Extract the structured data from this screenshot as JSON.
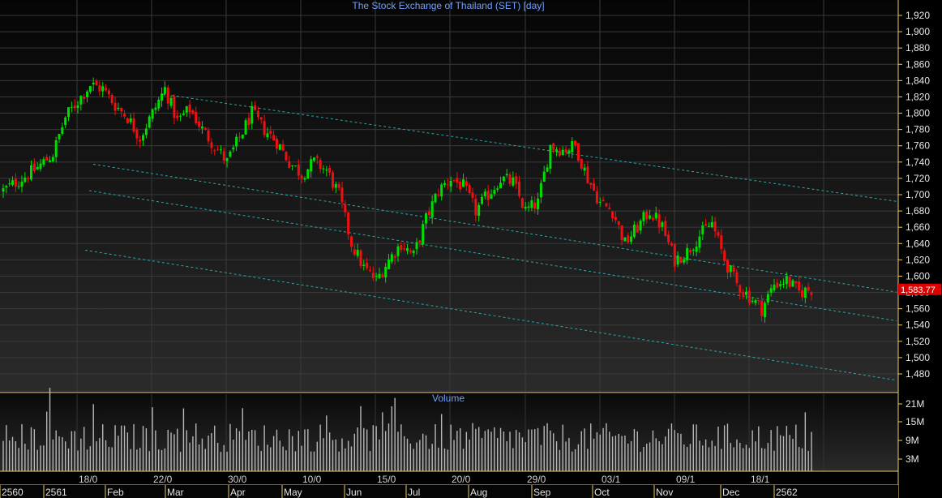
{
  "chart_data": {
    "type": "candlestick",
    "title": "The Stock Exchange of Thailand (SET) [day]",
    "volume_title": "Volume",
    "price_ticks": [
      1920,
      1900,
      1880,
      1860,
      1840,
      1820,
      1800,
      1780,
      1760,
      1740,
      1720,
      1700,
      1680,
      1660,
      1640,
      1620,
      1600,
      1580,
      1560,
      1540,
      1520,
      1500,
      1480
    ],
    "ylim": [
      1465,
      1930
    ],
    "last_price": "1,583.77",
    "volume_ticks": [
      "21M",
      "15M",
      "9M",
      "3M"
    ],
    "date_labels": [
      "18/0",
      "22/0",
      "30/0",
      "10/0",
      "15/0",
      "20/0",
      "29/0",
      "03/1",
      "09/1",
      "18/1"
    ],
    "month_labels": [
      "2560",
      "2561",
      "Feb",
      "Mar",
      "Apr",
      "May",
      "Jun",
      "Jul",
      "Aug",
      "Sep",
      "Oct",
      "Nov",
      "Dec",
      "2562"
    ],
    "up_color": "#00dd00",
    "down_color": "#ee1111",
    "trend_color": "#2aa8a8",
    "grid_color": "#3a3a3a",
    "axis_frame_color": "#e8d060",
    "last_price_color": "#dd0000",
    "volume_color": "#b8b8b8",
    "trendlines": [
      {
        "from": {
          "index": 0,
          "price": 1852
        },
        "to": {
          "index": 260,
          "price": 1707
        }
      },
      {
        "from": {
          "index": 0,
          "price": 1755
        },
        "to": {
          "index": 260,
          "price": 1597
        }
      },
      {
        "from": {
          "index": 0,
          "price": 1722
        },
        "to": {
          "index": 260,
          "price": 1562
        }
      },
      {
        "from": {
          "index": 0,
          "price": 1648
        },
        "to": {
          "index": 260,
          "price": 1489
        }
      }
    ],
    "close_path": [
      [
        0,
        1705
      ],
      [
        10,
        1730
      ],
      [
        16,
        1750
      ],
      [
        20,
        1795
      ],
      [
        24,
        1815
      ],
      [
        28,
        1835
      ],
      [
        32,
        1830
      ],
      [
        36,
        1810
      ],
      [
        40,
        1795
      ],
      [
        44,
        1770
      ],
      [
        48,
        1800
      ],
      [
        52,
        1830
      ],
      [
        56,
        1790
      ],
      [
        60,
        1805
      ],
      [
        64,
        1780
      ],
      [
        68,
        1760
      ],
      [
        72,
        1740
      ],
      [
        76,
        1770
      ],
      [
        80,
        1800
      ],
      [
        84,
        1780
      ],
      [
        88,
        1765
      ],
      [
        92,
        1740
      ],
      [
        96,
        1725
      ],
      [
        100,
        1740
      ],
      [
        104,
        1730
      ],
      [
        108,
        1700
      ],
      [
        112,
        1640
      ],
      [
        116,
        1610
      ],
      [
        120,
        1595
      ],
      [
        124,
        1620
      ],
      [
        128,
        1640
      ],
      [
        132,
        1625
      ],
      [
        136,
        1670
      ],
      [
        140,
        1705
      ],
      [
        144,
        1720
      ],
      [
        148,
        1710
      ],
      [
        152,
        1680
      ],
      [
        156,
        1700
      ],
      [
        160,
        1720
      ],
      [
        164,
        1715
      ],
      [
        168,
        1680
      ],
      [
        172,
        1690
      ],
      [
        176,
        1760
      ],
      [
        180,
        1755
      ],
      [
        184,
        1760
      ],
      [
        188,
        1720
      ],
      [
        192,
        1690
      ],
      [
        196,
        1680
      ],
      [
        200,
        1640
      ],
      [
        204,
        1660
      ],
      [
        208,
        1680
      ],
      [
        212,
        1660
      ],
      [
        216,
        1620
      ],
      [
        220,
        1630
      ],
      [
        224,
        1650
      ],
      [
        228,
        1665
      ],
      [
        232,
        1620
      ],
      [
        236,
        1590
      ],
      [
        240,
        1575
      ],
      [
        244,
        1560
      ],
      [
        248,
        1590
      ],
      [
        252,
        1595
      ],
      [
        256,
        1580
      ],
      [
        260,
        1584
      ]
    ],
    "volume_ticks_values": [
      21,
      15,
      9,
      3
    ],
    "volume_range_M": [
      0,
      24
    ]
  }
}
